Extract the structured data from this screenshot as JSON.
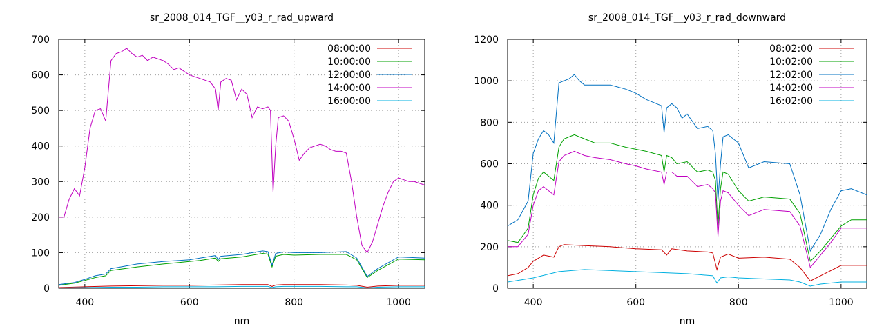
{
  "chart_data": [
    {
      "type": "line",
      "title": "sr_2008_014_TGF__y03_r_rad_upward",
      "xlabel": "nm",
      "ylabel": "",
      "xlim": [
        350,
        1050
      ],
      "ylim": [
        0,
        700
      ],
      "xticks": [
        400,
        600,
        800,
        1000
      ],
      "yticks": [
        0,
        100,
        200,
        300,
        400,
        500,
        600,
        700
      ],
      "grid": true,
      "legend_position": "top-right",
      "series": [
        {
          "name": "08:00:00",
          "color": "#cc0000",
          "x": [
            350,
            400,
            450,
            500,
            550,
            600,
            650,
            700,
            750,
            758,
            765,
            780,
            800,
            850,
            900,
            920,
            940,
            960,
            1000,
            1050
          ],
          "y": [
            2,
            4,
            6,
            7,
            8,
            8,
            9,
            10,
            10,
            5,
            9,
            10,
            10,
            10,
            9,
            8,
            3,
            6,
            8,
            8
          ]
        },
        {
          "name": "10:00:00",
          "color": "#00a000",
          "x": [
            350,
            380,
            400,
            420,
            440,
            450,
            500,
            550,
            600,
            620,
            650,
            655,
            660,
            700,
            740,
            750,
            758,
            765,
            780,
            800,
            850,
            900,
            920,
            940,
            960,
            1000,
            1050
          ],
          "y": [
            8,
            14,
            22,
            30,
            35,
            50,
            60,
            68,
            75,
            78,
            85,
            75,
            83,
            88,
            98,
            96,
            60,
            90,
            95,
            93,
            95,
            95,
            80,
            30,
            50,
            82,
            80
          ]
        },
        {
          "name": "12:00:00",
          "color": "#0070c0",
          "x": [
            350,
            380,
            400,
            420,
            440,
            450,
            500,
            550,
            600,
            620,
            650,
            655,
            660,
            700,
            740,
            750,
            758,
            765,
            780,
            800,
            850,
            900,
            920,
            940,
            960,
            1000,
            1050
          ],
          "y": [
            10,
            16,
            25,
            35,
            40,
            55,
            68,
            75,
            80,
            85,
            92,
            80,
            90,
            95,
            105,
            103,
            65,
            98,
            102,
            100,
            100,
            103,
            85,
            33,
            55,
            88,
            85
          ]
        },
        {
          "name": "14:00:00",
          "color": "#c000c0",
          "x": [
            350,
            360,
            370,
            380,
            390,
            400,
            410,
            420,
            430,
            440,
            450,
            460,
            470,
            480,
            490,
            500,
            510,
            520,
            530,
            540,
            550,
            560,
            570,
            580,
            590,
            600,
            610,
            620,
            630,
            640,
            650,
            655,
            660,
            670,
            680,
            690,
            700,
            710,
            720,
            730,
            740,
            750,
            755,
            760,
            765,
            770,
            780,
            790,
            800,
            810,
            820,
            830,
            840,
            850,
            860,
            870,
            880,
            890,
            900,
            910,
            920,
            930,
            940,
            950,
            960,
            970,
            980,
            990,
            1000,
            1010,
            1020,
            1030,
            1040,
            1050
          ],
          "y": [
            200,
            200,
            250,
            280,
            260,
            340,
            450,
            500,
            505,
            470,
            640,
            660,
            665,
            675,
            660,
            650,
            655,
            640,
            650,
            645,
            640,
            630,
            615,
            620,
            610,
            600,
            595,
            590,
            585,
            580,
            560,
            500,
            580,
            590,
            585,
            530,
            560,
            545,
            480,
            510,
            505,
            510,
            500,
            270,
            400,
            480,
            485,
            470,
            420,
            360,
            380,
            395,
            400,
            405,
            400,
            390,
            385,
            385,
            380,
            300,
            200,
            120,
            100,
            130,
            180,
            230,
            270,
            300,
            310,
            305,
            300,
            300,
            295,
            290
          ]
        },
        {
          "name": "16:00:00",
          "color": "#00b0e0",
          "x": [
            350,
            400,
            450,
            500,
            550,
            600,
            650,
            700,
            750,
            758,
            765,
            780,
            800,
            850,
            900,
            920,
            940,
            960,
            1000,
            1050
          ],
          "y": [
            1,
            2,
            3,
            3,
            4,
            4,
            4,
            5,
            5,
            2,
            4,
            5,
            5,
            5,
            4,
            4,
            1,
            3,
            4,
            4
          ]
        }
      ]
    },
    {
      "type": "line",
      "title": "sr_2008_014_TGF__y03_r_rad_downward",
      "xlabel": "nm",
      "ylabel": "",
      "xlim": [
        350,
        1050
      ],
      "ylim": [
        0,
        1200
      ],
      "xticks": [
        400,
        600,
        800,
        1000
      ],
      "yticks": [
        0,
        200,
        400,
        600,
        800,
        1000,
        1200
      ],
      "grid": true,
      "legend_position": "top-right",
      "series": [
        {
          "name": "08:02:00",
          "color": "#cc0000",
          "x": [
            350,
            370,
            390,
            400,
            420,
            440,
            450,
            460,
            500,
            550,
            600,
            650,
            660,
            670,
            700,
            740,
            750,
            758,
            765,
            780,
            800,
            850,
            900,
            920,
            940,
            960,
            1000,
            1050
          ],
          "y": [
            60,
            70,
            100,
            130,
            160,
            150,
            200,
            210,
            205,
            200,
            190,
            185,
            160,
            190,
            180,
            175,
            170,
            90,
            150,
            165,
            145,
            150,
            140,
            100,
            35,
            60,
            110,
            110
          ]
        },
        {
          "name": "10:02:00",
          "color": "#00a000",
          "x": [
            350,
            370,
            390,
            400,
            410,
            420,
            430,
            440,
            450,
            460,
            470,
            480,
            500,
            520,
            550,
            580,
            600,
            620,
            650,
            655,
            660,
            670,
            680,
            700,
            720,
            740,
            750,
            755,
            760,
            765,
            770,
            780,
            800,
            820,
            850,
            900,
            920,
            940,
            960,
            980,
            1000,
            1020,
            1050
          ],
          "y": [
            230,
            220,
            290,
            450,
            530,
            560,
            540,
            520,
            680,
            720,
            730,
            740,
            720,
            700,
            700,
            680,
            670,
            660,
            640,
            560,
            640,
            630,
            600,
            610,
            560,
            570,
            560,
            520,
            300,
            480,
            560,
            550,
            470,
            420,
            440,
            430,
            360,
            130,
            180,
            240,
            300,
            330,
            330
          ]
        },
        {
          "name": "12:02:00",
          "color": "#0070c0",
          "x": [
            350,
            370,
            390,
            400,
            410,
            420,
            430,
            440,
            450,
            460,
            470,
            480,
            490,
            500,
            520,
            550,
            580,
            600,
            620,
            650,
            655,
            660,
            670,
            680,
            690,
            700,
            720,
            740,
            750,
            755,
            760,
            765,
            770,
            780,
            800,
            820,
            850,
            900,
            920,
            940,
            960,
            980,
            1000,
            1020,
            1050
          ],
          "y": [
            300,
            330,
            420,
            650,
            720,
            760,
            740,
            700,
            990,
            1000,
            1010,
            1030,
            1000,
            980,
            980,
            980,
            960,
            940,
            910,
            880,
            750,
            870,
            890,
            870,
            820,
            840,
            770,
            780,
            760,
            650,
            420,
            600,
            730,
            740,
            700,
            580,
            610,
            600,
            450,
            180,
            260,
            380,
            470,
            480,
            450
          ]
        },
        {
          "name": "14:02:00",
          "color": "#c000c0",
          "x": [
            350,
            370,
            390,
            400,
            410,
            420,
            430,
            440,
            450,
            460,
            470,
            480,
            500,
            520,
            550,
            580,
            600,
            620,
            650,
            655,
            660,
            670,
            680,
            700,
            720,
            740,
            750,
            755,
            760,
            765,
            770,
            780,
            800,
            820,
            850,
            900,
            920,
            940,
            960,
            980,
            1000,
            1020,
            1050
          ],
          "y": [
            200,
            200,
            260,
            400,
            470,
            490,
            470,
            450,
            610,
            640,
            650,
            660,
            640,
            630,
            620,
            600,
            590,
            575,
            560,
            500,
            560,
            560,
            540,
            540,
            490,
            500,
            480,
            460,
            250,
            420,
            470,
            460,
            400,
            350,
            380,
            370,
            300,
            100,
            160,
            220,
            290,
            290,
            290
          ]
        },
        {
          "name": "16:02:00",
          "color": "#00b0e0",
          "x": [
            350,
            400,
            450,
            500,
            550,
            600,
            650,
            700,
            750,
            758,
            765,
            780,
            800,
            850,
            900,
            920,
            940,
            960,
            1000,
            1050
          ],
          "y": [
            30,
            50,
            80,
            90,
            85,
            80,
            75,
            70,
            60,
            25,
            50,
            55,
            50,
            45,
            40,
            30,
            10,
            20,
            30,
            30
          ]
        }
      ]
    }
  ]
}
